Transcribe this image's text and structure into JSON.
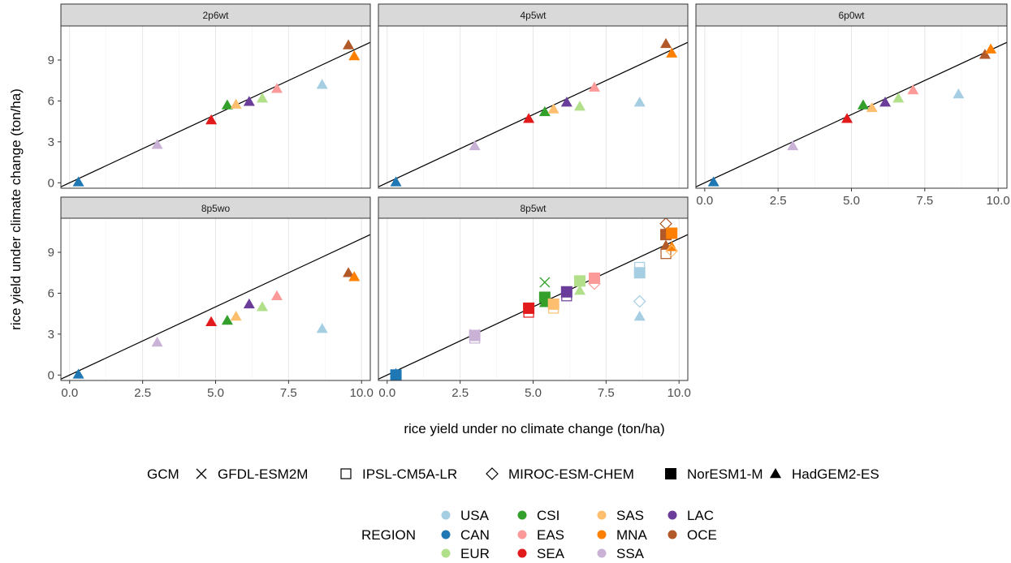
{
  "chart_data": {
    "type": "scatter",
    "xlabel": "rice yield under no climate change (ton/ha)",
    "ylabel": "rice yield under climate change (ton/ha)",
    "xlim": [
      -0.3,
      10.3
    ],
    "ylim": [
      -0.4,
      11.5
    ],
    "x_ticks": [
      "0.0",
      "2.5",
      "5.0",
      "7.5",
      "10.0"
    ],
    "y_ticks": [
      "0",
      "3",
      "6",
      "9"
    ],
    "reference_line": "y = x",
    "grid": "major vertical lines",
    "colors": {
      "USA": "#a6cee3",
      "CAN": "#1f78b4",
      "EUR": "#b2df8a",
      "CSI": "#33a02c",
      "EAS": "#fb9a99",
      "SEA": "#e31a1c",
      "SAS": "#fdbf6f",
      "MNA": "#ff7f00",
      "SSA": "#cab2d6",
      "LAC": "#6a3d9a",
      "OCE": "#b15928"
    },
    "legend_gcm": {
      "title": "GCM",
      "items": [
        {
          "label": "GFDL-ESM2M",
          "shape": "cross"
        },
        {
          "label": "IPSL-CM5A-LR",
          "shape": "square-open"
        },
        {
          "label": "MIROC-ESM-CHEM",
          "shape": "diamond-open"
        },
        {
          "label": "NorESM1-M",
          "shape": "square"
        },
        {
          "label": "HadGEM2-ES",
          "shape": "triangle"
        }
      ]
    },
    "legend_region": {
      "title": "REGION",
      "columns": [
        [
          "USA",
          "CAN",
          "EUR"
        ],
        [
          "CSI",
          "EAS",
          "SEA"
        ],
        [
          "SAS",
          "MNA",
          "SSA"
        ],
        [
          "LAC",
          "OCE"
        ]
      ]
    },
    "panels": [
      {
        "name": "2p6wt",
        "points": [
          {
            "region": "CAN",
            "gcm": "HadGEM2-ES",
            "x": 0.3,
            "y": 0.05
          },
          {
            "region": "SSA",
            "gcm": "HadGEM2-ES",
            "x": 3.0,
            "y": 2.8
          },
          {
            "region": "SEA",
            "gcm": "HadGEM2-ES",
            "x": 4.85,
            "y": 4.6
          },
          {
            "region": "CSI",
            "gcm": "HadGEM2-ES",
            "x": 5.4,
            "y": 5.7
          },
          {
            "region": "SAS",
            "gcm": "HadGEM2-ES",
            "x": 5.7,
            "y": 5.75
          },
          {
            "region": "LAC",
            "gcm": "HadGEM2-ES",
            "x": 6.15,
            "y": 5.95
          },
          {
            "region": "EUR",
            "gcm": "HadGEM2-ES",
            "x": 6.6,
            "y": 6.2
          },
          {
            "region": "EAS",
            "gcm": "HadGEM2-ES",
            "x": 7.1,
            "y": 6.9
          },
          {
            "region": "USA",
            "gcm": "HadGEM2-ES",
            "x": 8.65,
            "y": 7.2
          },
          {
            "region": "OCE",
            "gcm": "HadGEM2-ES",
            "x": 9.55,
            "y": 10.1
          },
          {
            "region": "MNA",
            "gcm": "HadGEM2-ES",
            "x": 9.75,
            "y": 9.3
          }
        ]
      },
      {
        "name": "4p5wt",
        "points": [
          {
            "region": "CAN",
            "gcm": "HadGEM2-ES",
            "x": 0.3,
            "y": 0.05
          },
          {
            "region": "SSA",
            "gcm": "HadGEM2-ES",
            "x": 3.0,
            "y": 2.7
          },
          {
            "region": "SEA",
            "gcm": "HadGEM2-ES",
            "x": 4.85,
            "y": 4.7
          },
          {
            "region": "CSI",
            "gcm": "HadGEM2-ES",
            "x": 5.4,
            "y": 5.2
          },
          {
            "region": "SAS",
            "gcm": "HadGEM2-ES",
            "x": 5.7,
            "y": 5.4
          },
          {
            "region": "LAC",
            "gcm": "HadGEM2-ES",
            "x": 6.15,
            "y": 5.9
          },
          {
            "region": "EUR",
            "gcm": "HadGEM2-ES",
            "x": 6.6,
            "y": 5.6
          },
          {
            "region": "EAS",
            "gcm": "HadGEM2-ES",
            "x": 7.1,
            "y": 7.0
          },
          {
            "region": "USA",
            "gcm": "HadGEM2-ES",
            "x": 8.65,
            "y": 5.9
          },
          {
            "region": "OCE",
            "gcm": "HadGEM2-ES",
            "x": 9.55,
            "y": 10.2
          },
          {
            "region": "MNA",
            "gcm": "HadGEM2-ES",
            "x": 9.75,
            "y": 9.5
          }
        ]
      },
      {
        "name": "6p0wt",
        "points": [
          {
            "region": "CAN",
            "gcm": "HadGEM2-ES",
            "x": 0.3,
            "y": 0.05
          },
          {
            "region": "SSA",
            "gcm": "HadGEM2-ES",
            "x": 3.0,
            "y": 2.7
          },
          {
            "region": "SEA",
            "gcm": "HadGEM2-ES",
            "x": 4.85,
            "y": 4.7
          },
          {
            "region": "CSI",
            "gcm": "HadGEM2-ES",
            "x": 5.4,
            "y": 5.7
          },
          {
            "region": "SAS",
            "gcm": "HadGEM2-ES",
            "x": 5.7,
            "y": 5.5
          },
          {
            "region": "LAC",
            "gcm": "HadGEM2-ES",
            "x": 6.15,
            "y": 5.9
          },
          {
            "region": "EUR",
            "gcm": "HadGEM2-ES",
            "x": 6.6,
            "y": 6.2
          },
          {
            "region": "EAS",
            "gcm": "HadGEM2-ES",
            "x": 7.1,
            "y": 6.8
          },
          {
            "region": "USA",
            "gcm": "HadGEM2-ES",
            "x": 8.65,
            "y": 6.5
          },
          {
            "region": "OCE",
            "gcm": "HadGEM2-ES",
            "x": 9.55,
            "y": 9.4
          },
          {
            "region": "MNA",
            "gcm": "HadGEM2-ES",
            "x": 9.75,
            "y": 9.8
          }
        ]
      },
      {
        "name": "8p5wo",
        "points": [
          {
            "region": "CAN",
            "gcm": "HadGEM2-ES",
            "x": 0.3,
            "y": 0.05
          },
          {
            "region": "SSA",
            "gcm": "HadGEM2-ES",
            "x": 3.0,
            "y": 2.4
          },
          {
            "region": "SEA",
            "gcm": "HadGEM2-ES",
            "x": 4.85,
            "y": 3.9
          },
          {
            "region": "CSI",
            "gcm": "HadGEM2-ES",
            "x": 5.4,
            "y": 4.0
          },
          {
            "region": "SAS",
            "gcm": "HadGEM2-ES",
            "x": 5.7,
            "y": 4.3
          },
          {
            "region": "LAC",
            "gcm": "HadGEM2-ES",
            "x": 6.15,
            "y": 5.2
          },
          {
            "region": "EUR",
            "gcm": "HadGEM2-ES",
            "x": 6.6,
            "y": 5.0
          },
          {
            "region": "EAS",
            "gcm": "HadGEM2-ES",
            "x": 7.1,
            "y": 5.8
          },
          {
            "region": "USA",
            "gcm": "HadGEM2-ES",
            "x": 8.65,
            "y": 3.4
          },
          {
            "region": "OCE",
            "gcm": "HadGEM2-ES",
            "x": 9.55,
            "y": 7.5
          },
          {
            "region": "MNA",
            "gcm": "HadGEM2-ES",
            "x": 9.75,
            "y": 7.2
          }
        ]
      },
      {
        "name": "8p5wt",
        "points": [
          {
            "region": "CAN",
            "gcm": "NorESM1-M",
            "x": 0.3,
            "y": 0.0
          },
          {
            "region": "CAN",
            "gcm": "HadGEM2-ES",
            "x": 0.3,
            "y": 0.1
          },
          {
            "region": "SSA",
            "gcm": "GFDL-ESM2M",
            "x": 3.0,
            "y": 3.0
          },
          {
            "region": "SSA",
            "gcm": "IPSL-CM5A-LR",
            "x": 3.0,
            "y": 2.7
          },
          {
            "region": "SSA",
            "gcm": "NorESM1-M",
            "x": 3.0,
            "y": 2.9
          },
          {
            "region": "SEA",
            "gcm": "NorESM1-M",
            "x": 4.85,
            "y": 4.9
          },
          {
            "region": "SEA",
            "gcm": "IPSL-CM5A-LR",
            "x": 4.85,
            "y": 4.6
          },
          {
            "region": "CSI",
            "gcm": "GFDL-ESM2M",
            "x": 5.4,
            "y": 6.8
          },
          {
            "region": "CSI",
            "gcm": "NorESM1-M",
            "x": 5.4,
            "y": 5.7
          },
          {
            "region": "CSI",
            "gcm": "HadGEM2-ES",
            "x": 5.4,
            "y": 5.3
          },
          {
            "region": "SAS",
            "gcm": "NorESM1-M",
            "x": 5.7,
            "y": 5.2
          },
          {
            "region": "SAS",
            "gcm": "IPSL-CM5A-LR",
            "x": 5.7,
            "y": 4.9
          },
          {
            "region": "LAC",
            "gcm": "NorESM1-M",
            "x": 6.15,
            "y": 6.1
          },
          {
            "region": "LAC",
            "gcm": "IPSL-CM5A-LR",
            "x": 6.15,
            "y": 5.8
          },
          {
            "region": "EUR",
            "gcm": "NorESM1-M",
            "x": 6.6,
            "y": 6.9
          },
          {
            "region": "EUR",
            "gcm": "HadGEM2-ES",
            "x": 6.6,
            "y": 6.2
          },
          {
            "region": "EAS",
            "gcm": "NorESM1-M",
            "x": 7.1,
            "y": 7.1
          },
          {
            "region": "EAS",
            "gcm": "MIROC-ESM-CHEM",
            "x": 7.1,
            "y": 6.7
          },
          {
            "region": "USA",
            "gcm": "IPSL-CM5A-LR",
            "x": 8.65,
            "y": 7.9
          },
          {
            "region": "USA",
            "gcm": "NorESM1-M",
            "x": 8.65,
            "y": 7.5
          },
          {
            "region": "USA",
            "gcm": "MIROC-ESM-CHEM",
            "x": 8.65,
            "y": 5.4
          },
          {
            "region": "USA",
            "gcm": "HadGEM2-ES",
            "x": 8.65,
            "y": 4.3
          },
          {
            "region": "OCE",
            "gcm": "MIROC-ESM-CHEM",
            "x": 9.55,
            "y": 11.1
          },
          {
            "region": "OCE",
            "gcm": "NorESM1-M",
            "x": 9.55,
            "y": 10.3
          },
          {
            "region": "OCE",
            "gcm": "HadGEM2-ES",
            "x": 9.55,
            "y": 9.5
          },
          {
            "region": "OCE",
            "gcm": "IPSL-CM5A-LR",
            "x": 9.55,
            "y": 8.9
          },
          {
            "region": "MNA",
            "gcm": "NorESM1-M",
            "x": 9.75,
            "y": 10.4
          },
          {
            "region": "MNA",
            "gcm": "HadGEM2-ES",
            "x": 9.75,
            "y": 9.4
          },
          {
            "region": "SAS",
            "gcm": "MIROC-ESM-CHEM",
            "x": 9.75,
            "y": 9.1
          }
        ]
      }
    ]
  }
}
